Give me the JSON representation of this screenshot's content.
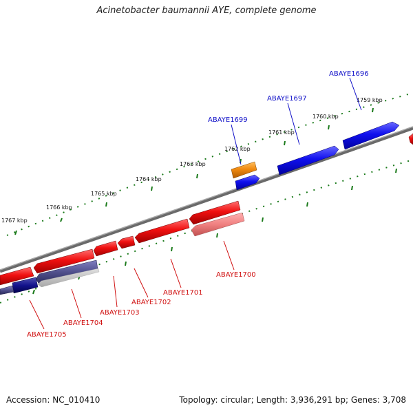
{
  "title": "Acinetobacter baumannii AYE, complete genome",
  "footer": {
    "accession": "Accession: NC_010410",
    "topology": "Topology: circular; Length: 3,936,291 bp; Genes: 3,708"
  },
  "ticks": {
    "outer_labels": [
      "1759 kbp",
      "1760 kbp",
      "1761 kbp",
      "1762 kbp",
      "1763 kbp",
      "1764 kbp",
      "1765 kbp",
      "1766 kbp",
      "1767 kbp"
    ],
    "color": "#1a7a1a"
  },
  "genes": {
    "plus_strand": [
      "ABAYE1696",
      "ABAYE1697",
      "ABAYE1699"
    ],
    "minus_strand": [
      "ABAYE1700",
      "ABAYE1701",
      "ABAYE1702",
      "ABAYE1703",
      "ABAYE1704",
      "ABAYE1705"
    ]
  },
  "colors": {
    "plus_gene": "#0a14e6",
    "minus_gene": "#f01010",
    "orange_gene": "#f08a10",
    "dark_blue_gene": "#0a0a88",
    "backbone": "#808080",
    "plus_label": "#1010c8",
    "minus_label": "#d01010"
  }
}
